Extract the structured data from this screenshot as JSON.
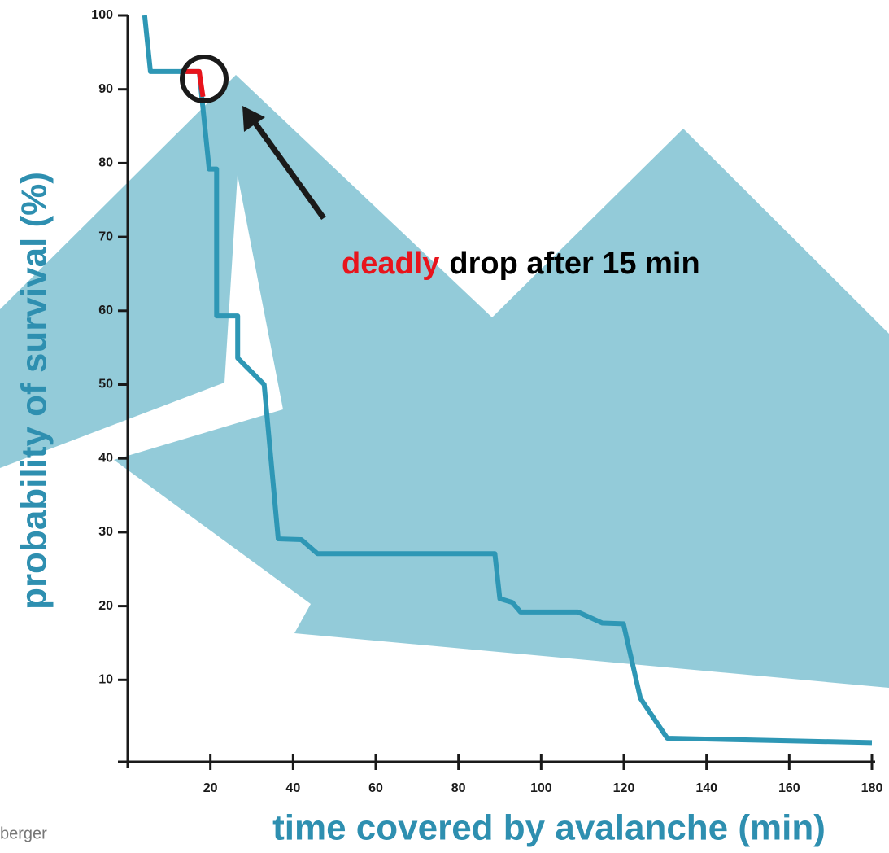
{
  "chart_data": {
    "type": "line",
    "xlabel": "time covered by avalanche (min)",
    "ylabel": "probability of survival (%)",
    "xlim": [
      0,
      180
    ],
    "ylim": [
      0,
      100
    ],
    "xticks": [
      20,
      40,
      60,
      80,
      100,
      120,
      140,
      160,
      180
    ],
    "yticks": [
      10,
      20,
      30,
      40,
      50,
      60,
      70,
      80,
      90,
      100
    ],
    "series": [
      {
        "color": "#2e97b5",
        "x": [
          4.1,
          5.5,
          17.3,
          19.7,
          21.5,
          21.5,
          26.6,
          26.6,
          33,
          36.4,
          42,
          45.9,
          88.8,
          90,
          93,
          95,
          108.9,
          114.8,
          119.9,
          124,
          130.5,
          180
        ],
        "values": [
          100,
          92.4,
          92.4,
          79.2,
          79.2,
          59.3,
          59.3,
          53.6,
          50,
          29.1,
          29,
          27.1,
          27.1,
          21,
          20.5,
          19.2,
          19.2,
          17.7,
          17.6,
          7.5,
          2.1,
          1.5
        ]
      },
      {
        "color": "#e8141c",
        "x": [
          14,
          17.3,
          18.2
        ],
        "values": [
          92.4,
          92.4,
          89
        ]
      }
    ],
    "annotations": [
      "deadly",
      "drop after 15 min"
    ],
    "credit": "berger"
  }
}
